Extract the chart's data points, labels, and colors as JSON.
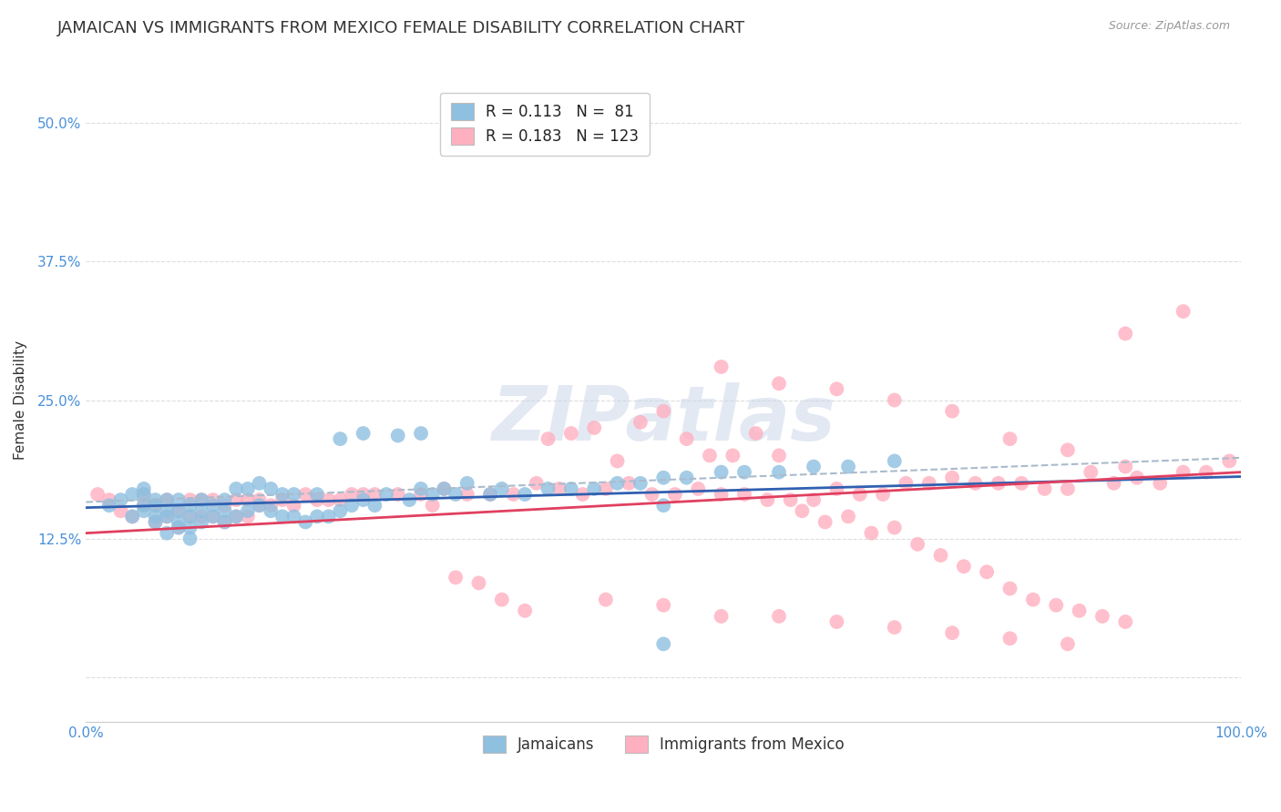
{
  "title": "JAMAICAN VS IMMIGRANTS FROM MEXICO FEMALE DISABILITY CORRELATION CHART",
  "source": "Source: ZipAtlas.com",
  "ylabel": "Female Disability",
  "xlim": [
    0.0,
    1.0
  ],
  "ylim": [
    -0.04,
    0.54
  ],
  "yticks": [
    0.0,
    0.125,
    0.25,
    0.375,
    0.5
  ],
  "ytick_labels": [
    "",
    "12.5%",
    "25.0%",
    "37.5%",
    "50.0%"
  ],
  "xticks": [
    0.0,
    0.25,
    0.5,
    0.75,
    1.0
  ],
  "xtick_labels": [
    "0.0%",
    "",
    "",
    "",
    "100.0%"
  ],
  "color_blue": "#8FC0E0",
  "color_pink": "#FFB0C0",
  "line_blue": "#3060B0",
  "line_pink": "#E04060",
  "line_dash": "#AABBCC",
  "legend_r1": "R = 0.113",
  "legend_n1": "N =  81",
  "legend_r2": "R = 0.183",
  "legend_n2": "N = 123",
  "label1": "Jamaicans",
  "label2": "Immigrants from Mexico",
  "watermark": "ZIPatlas",
  "blue_x": [
    0.02,
    0.03,
    0.04,
    0.04,
    0.05,
    0.05,
    0.05,
    0.05,
    0.06,
    0.06,
    0.06,
    0.06,
    0.07,
    0.07,
    0.07,
    0.07,
    0.08,
    0.08,
    0.08,
    0.08,
    0.09,
    0.09,
    0.09,
    0.09,
    0.1,
    0.1,
    0.1,
    0.11,
    0.11,
    0.12,
    0.12,
    0.12,
    0.13,
    0.13,
    0.14,
    0.14,
    0.15,
    0.15,
    0.16,
    0.16,
    0.17,
    0.17,
    0.18,
    0.18,
    0.19,
    0.2,
    0.2,
    0.21,
    0.22,
    0.23,
    0.24,
    0.25,
    0.26,
    0.28,
    0.29,
    0.3,
    0.31,
    0.32,
    0.33,
    0.35,
    0.36,
    0.38,
    0.4,
    0.42,
    0.44,
    0.46,
    0.48,
    0.5,
    0.52,
    0.55,
    0.57,
    0.6,
    0.63,
    0.66,
    0.7,
    0.22,
    0.24,
    0.27,
    0.29,
    0.5,
    0.5
  ],
  "blue_y": [
    0.155,
    0.16,
    0.145,
    0.165,
    0.15,
    0.155,
    0.165,
    0.17,
    0.14,
    0.145,
    0.155,
    0.16,
    0.13,
    0.145,
    0.15,
    0.16,
    0.135,
    0.14,
    0.15,
    0.16,
    0.125,
    0.135,
    0.145,
    0.155,
    0.14,
    0.15,
    0.16,
    0.145,
    0.155,
    0.14,
    0.15,
    0.16,
    0.145,
    0.17,
    0.15,
    0.17,
    0.155,
    0.175,
    0.15,
    0.17,
    0.145,
    0.165,
    0.145,
    0.165,
    0.14,
    0.145,
    0.165,
    0.145,
    0.15,
    0.155,
    0.16,
    0.155,
    0.165,
    0.16,
    0.17,
    0.165,
    0.17,
    0.165,
    0.175,
    0.165,
    0.17,
    0.165,
    0.17,
    0.17,
    0.17,
    0.175,
    0.175,
    0.18,
    0.18,
    0.185,
    0.185,
    0.185,
    0.19,
    0.19,
    0.195,
    0.215,
    0.22,
    0.218,
    0.22,
    0.155,
    0.03
  ],
  "pink_x": [
    0.01,
    0.02,
    0.03,
    0.04,
    0.05,
    0.05,
    0.06,
    0.06,
    0.07,
    0.07,
    0.08,
    0.08,
    0.09,
    0.09,
    0.1,
    0.1,
    0.11,
    0.11,
    0.12,
    0.12,
    0.13,
    0.13,
    0.14,
    0.14,
    0.15,
    0.15,
    0.16,
    0.17,
    0.18,
    0.19,
    0.2,
    0.21,
    0.22,
    0.23,
    0.24,
    0.25,
    0.27,
    0.29,
    0.31,
    0.33,
    0.35,
    0.37,
    0.39,
    0.41,
    0.43,
    0.45,
    0.47,
    0.49,
    0.51,
    0.53,
    0.55,
    0.57,
    0.59,
    0.61,
    0.63,
    0.65,
    0.67,
    0.69,
    0.71,
    0.73,
    0.75,
    0.77,
    0.79,
    0.81,
    0.83,
    0.85,
    0.87,
    0.89,
    0.91,
    0.93,
    0.95,
    0.97,
    0.99,
    0.4,
    0.42,
    0.44,
    0.46,
    0.48,
    0.5,
    0.52,
    0.54,
    0.56,
    0.58,
    0.6,
    0.62,
    0.64,
    0.66,
    0.68,
    0.7,
    0.72,
    0.74,
    0.76,
    0.78,
    0.8,
    0.82,
    0.84,
    0.86,
    0.88,
    0.9,
    0.3,
    0.32,
    0.34,
    0.36,
    0.38,
    0.45,
    0.5,
    0.55,
    0.6,
    0.65,
    0.7,
    0.75,
    0.8,
    0.85,
    0.9,
    0.95,
    0.55,
    0.6,
    0.65,
    0.7,
    0.75,
    0.8,
    0.85,
    0.9
  ],
  "pink_y": [
    0.165,
    0.16,
    0.15,
    0.145,
    0.155,
    0.165,
    0.14,
    0.155,
    0.145,
    0.16,
    0.135,
    0.15,
    0.145,
    0.16,
    0.145,
    0.16,
    0.145,
    0.16,
    0.14,
    0.155,
    0.145,
    0.16,
    0.145,
    0.16,
    0.155,
    0.16,
    0.155,
    0.16,
    0.155,
    0.165,
    0.16,
    0.16,
    0.16,
    0.165,
    0.165,
    0.165,
    0.165,
    0.165,
    0.17,
    0.165,
    0.165,
    0.165,
    0.175,
    0.17,
    0.165,
    0.17,
    0.175,
    0.165,
    0.165,
    0.17,
    0.165,
    0.165,
    0.16,
    0.16,
    0.16,
    0.17,
    0.165,
    0.165,
    0.175,
    0.175,
    0.18,
    0.175,
    0.175,
    0.175,
    0.17,
    0.17,
    0.185,
    0.175,
    0.18,
    0.175,
    0.185,
    0.185,
    0.195,
    0.215,
    0.22,
    0.225,
    0.195,
    0.23,
    0.24,
    0.215,
    0.2,
    0.2,
    0.22,
    0.2,
    0.15,
    0.14,
    0.145,
    0.13,
    0.135,
    0.12,
    0.11,
    0.1,
    0.095,
    0.08,
    0.07,
    0.065,
    0.06,
    0.055,
    0.05,
    0.155,
    0.09,
    0.085,
    0.07,
    0.06,
    0.07,
    0.065,
    0.055,
    0.055,
    0.05,
    0.045,
    0.04,
    0.035,
    0.03,
    0.31,
    0.33,
    0.28,
    0.265,
    0.26,
    0.25,
    0.24,
    0.215,
    0.205,
    0.19
  ],
  "blue_slope": 0.028,
  "blue_intercept": 0.153,
  "pink_slope": 0.055,
  "pink_intercept": 0.13,
  "pink_dash_slope": 0.04,
  "pink_dash_intercept": 0.158,
  "background_color": "#FFFFFF",
  "grid_color": "#DDDDDD",
  "axis_label_color": "#4a90d9",
  "title_color": "#333333",
  "title_fontsize": 13,
  "axis_label_fontsize": 11,
  "tick_fontsize": 11
}
